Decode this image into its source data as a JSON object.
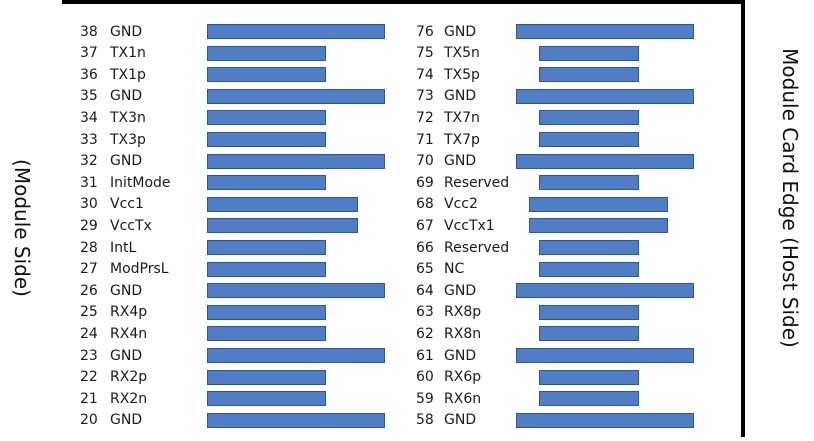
{
  "labels": {
    "module_side": "(Module Side)",
    "host_side": "Module Card Edge (Host Side)"
  },
  "colors": {
    "pad_fill": "#4f7ec6",
    "pad_border": "#2f5597"
  },
  "left_pins": [
    {
      "num": "38",
      "name": "GND",
      "pad": "long"
    },
    {
      "num": "37",
      "name": "TX1n",
      "pad": "short"
    },
    {
      "num": "36",
      "name": "TX1p",
      "pad": "short"
    },
    {
      "num": "35",
      "name": "GND",
      "pad": "long"
    },
    {
      "num": "34",
      "name": "TX3n",
      "pad": "short"
    },
    {
      "num": "33",
      "name": "TX3p",
      "pad": "short"
    },
    {
      "num": "32",
      "name": "GND",
      "pad": "long"
    },
    {
      "num": "31",
      "name": "InitMode",
      "pad": "short"
    },
    {
      "num": "30",
      "name": "Vcc1",
      "pad": "medium"
    },
    {
      "num": "29",
      "name": "VccTx",
      "pad": "medium"
    },
    {
      "num": "28",
      "name": "IntL",
      "pad": "short"
    },
    {
      "num": "27",
      "name": "ModPrsL",
      "pad": "short"
    },
    {
      "num": "26",
      "name": "GND",
      "pad": "long"
    },
    {
      "num": "25",
      "name": "RX4p",
      "pad": "short"
    },
    {
      "num": "24",
      "name": "RX4n",
      "pad": "short"
    },
    {
      "num": "23",
      "name": "GND",
      "pad": "long"
    },
    {
      "num": "22",
      "name": "RX2p",
      "pad": "short"
    },
    {
      "num": "21",
      "name": "RX2n",
      "pad": "short"
    },
    {
      "num": "20",
      "name": "GND",
      "pad": "long"
    }
  ],
  "right_pins": [
    {
      "num": "76",
      "name": "GND",
      "pad": "long"
    },
    {
      "num": "75",
      "name": "TX5n",
      "pad": "short"
    },
    {
      "num": "74",
      "name": "TX5p",
      "pad": "short"
    },
    {
      "num": "73",
      "name": "GND",
      "pad": "long"
    },
    {
      "num": "72",
      "name": "TX7n",
      "pad": "short"
    },
    {
      "num": "71",
      "name": "TX7p",
      "pad": "short"
    },
    {
      "num": "70",
      "name": "GND",
      "pad": "long"
    },
    {
      "num": "69",
      "name": "Reserved",
      "pad": "short"
    },
    {
      "num": "68",
      "name": "Vcc2",
      "pad": "medium"
    },
    {
      "num": "67",
      "name": "VccTx1",
      "pad": "medium"
    },
    {
      "num": "66",
      "name": "Reserved",
      "pad": "short"
    },
    {
      "num": "65",
      "name": "NC",
      "pad": "short"
    },
    {
      "num": "64",
      "name": "GND",
      "pad": "long"
    },
    {
      "num": "63",
      "name": "RX8p",
      "pad": "short"
    },
    {
      "num": "62",
      "name": "RX8n",
      "pad": "short"
    },
    {
      "num": "61",
      "name": "GND",
      "pad": "long"
    },
    {
      "num": "60",
      "name": "RX6p",
      "pad": "short"
    },
    {
      "num": "59",
      "name": "RX6n",
      "pad": "short"
    },
    {
      "num": "58",
      "name": "GND",
      "pad": "long"
    }
  ]
}
